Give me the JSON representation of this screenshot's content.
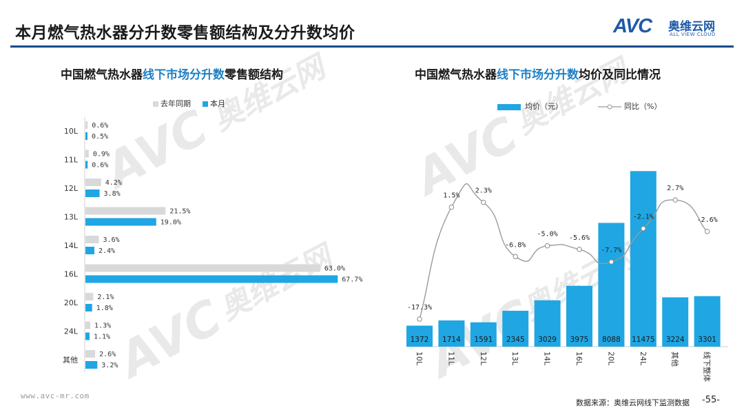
{
  "header": {
    "title": "本月燃气热水器分升数零售额结构及分升数均价"
  },
  "logo": {
    "mark": "AVC",
    "name": "奥维云网",
    "tagline": "ALL VIEW CLOUD"
  },
  "left_chart": {
    "title_pre": "中国燃气热水器",
    "title_hl": "线下市场分升数",
    "title_post": "零售额结构"
  },
  "right_chart": {
    "title_pre": "中国燃气热水器",
    "title_hl": "线下市场分升数",
    "title_post": "均价及同比情况"
  },
  "footer": {
    "url": "www.avc-mr.com",
    "source": "数据来源：奥维云网线下监测数据",
    "page": "-55-"
  },
  "colors": {
    "blue": "#1fa6e3",
    "gray": "#d9d9d9",
    "line": "#9a9a9a",
    "accent": "#1c7fc4",
    "rule": "#0c4a8a"
  },
  "chart_data": [
    {
      "type": "bar",
      "orientation": "horizontal",
      "categories": [
        "10L",
        "11L",
        "12L",
        "13L",
        "14L",
        "16L",
        "20L",
        "24L",
        "其他"
      ],
      "series": [
        {
          "name": "去年同期",
          "values": [
            0.6,
            0.9,
            4.2,
            21.5,
            3.6,
            63.0,
            2.1,
            1.3,
            2.6
          ],
          "labels": [
            "0.6%",
            "0.9%",
            "4.2%",
            "21.5%",
            "3.6%",
            "63.0%",
            "2.1%",
            "1.3%",
            "2.6%"
          ],
          "color": "#d9d9d9"
        },
        {
          "name": "本月",
          "values": [
            0.5,
            0.6,
            3.8,
            19.0,
            2.4,
            67.7,
            1.8,
            1.1,
            3.2
          ],
          "labels": [
            "0.5%",
            "0.6%",
            "3.8%",
            "19.0%",
            "2.4%",
            "67.7%",
            "1.8%",
            "1.1%",
            "3.2%"
          ],
          "color": "#1fa6e3"
        }
      ],
      "xlim": [
        0,
        80
      ]
    },
    {
      "type": "bar+line",
      "categories": [
        "10L",
        "11L",
        "12L",
        "13L",
        "14L",
        "16L",
        "20L",
        "24L",
        "其他",
        "线下整体"
      ],
      "series": [
        {
          "name": "均价（元）",
          "type": "bar",
          "values": [
            1372,
            1714,
            1591,
            2345,
            3029,
            3975,
            8088,
            11475,
            3224,
            3301
          ],
          "labels": [
            "1372",
            "1714",
            "1591",
            "2345",
            "3029",
            "3975",
            "8088",
            "11475",
            "3224",
            "3301"
          ],
          "color": "#1fa6e3"
        },
        {
          "name": "同比（%）",
          "type": "line",
          "values": [
            -17.3,
            1.5,
            2.3,
            -6.8,
            -5.0,
            -5.6,
            -7.7,
            -2.1,
            2.7,
            -2.6
          ],
          "labels": [
            "-17.3%",
            "1.5%",
            "2.3%",
            "-6.8%",
            "-5.0%",
            "-5.6%",
            "-7.7%",
            "-2.1%",
            "2.7%",
            "-2.6%"
          ],
          "color": "#9a9a9a"
        }
      ],
      "ylim_bar": [
        0,
        13500
      ],
      "ylim_line": [
        -18.5,
        3.5
      ]
    }
  ]
}
